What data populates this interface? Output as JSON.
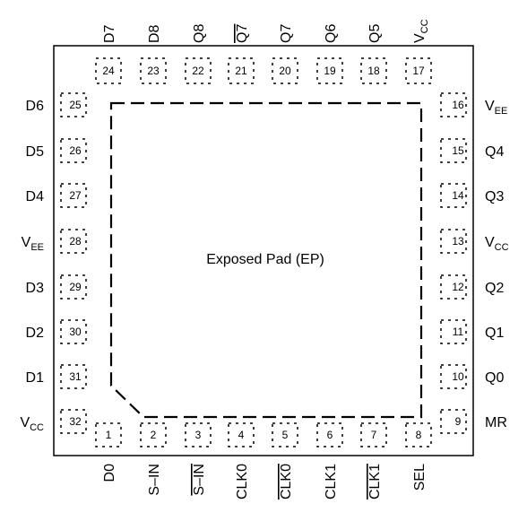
{
  "package": {
    "exposed_pad_label": "Exposed Pad (EP)",
    "pins": {
      "top": [
        {
          "num": "24",
          "name": "D7",
          "bar": false
        },
        {
          "num": "23",
          "name": "D8",
          "bar": false
        },
        {
          "num": "22",
          "name": "Q8",
          "bar": false
        },
        {
          "num": "21",
          "name": "Q7",
          "bar": true
        },
        {
          "num": "20",
          "name": "Q7",
          "bar": false
        },
        {
          "num": "19",
          "name": "Q6",
          "bar": false
        },
        {
          "num": "18",
          "name": "Q5",
          "bar": false
        },
        {
          "num": "17",
          "name": "V",
          "sub": "CC",
          "bar": false
        }
      ],
      "bottom": [
        {
          "num": "1",
          "name": "D0",
          "bar": false
        },
        {
          "num": "2",
          "name": "S–IN",
          "bar": false
        },
        {
          "num": "3",
          "name": "S–IN",
          "bar": true
        },
        {
          "num": "4",
          "name": "CLK0",
          "bar": false
        },
        {
          "num": "5",
          "name": "CLK0",
          "bar": true
        },
        {
          "num": "6",
          "name": "CLK1",
          "bar": false
        },
        {
          "num": "7",
          "name": "CLK1",
          "bar": true
        },
        {
          "num": "8",
          "name": "SEL",
          "bar": false
        }
      ],
      "left": [
        {
          "num": "25",
          "name": "D6"
        },
        {
          "num": "26",
          "name": "D5"
        },
        {
          "num": "27",
          "name": "D4"
        },
        {
          "num": "28",
          "name": "V",
          "sub": "EE"
        },
        {
          "num": "29",
          "name": "D3"
        },
        {
          "num": "30",
          "name": "D2"
        },
        {
          "num": "31",
          "name": "D1"
        },
        {
          "num": "32",
          "name": "V",
          "sub": "CC"
        }
      ],
      "right": [
        {
          "num": "16",
          "name": "V",
          "sub": "EE"
        },
        {
          "num": "15",
          "name": "Q4"
        },
        {
          "num": "14",
          "name": "Q3"
        },
        {
          "num": "13",
          "name": "V",
          "sub": "CC"
        },
        {
          "num": "12",
          "name": "Q2"
        },
        {
          "num": "11",
          "name": "Q1"
        },
        {
          "num": "10",
          "name": "Q0"
        },
        {
          "num": "9",
          "name": "MR"
        }
      ]
    }
  }
}
